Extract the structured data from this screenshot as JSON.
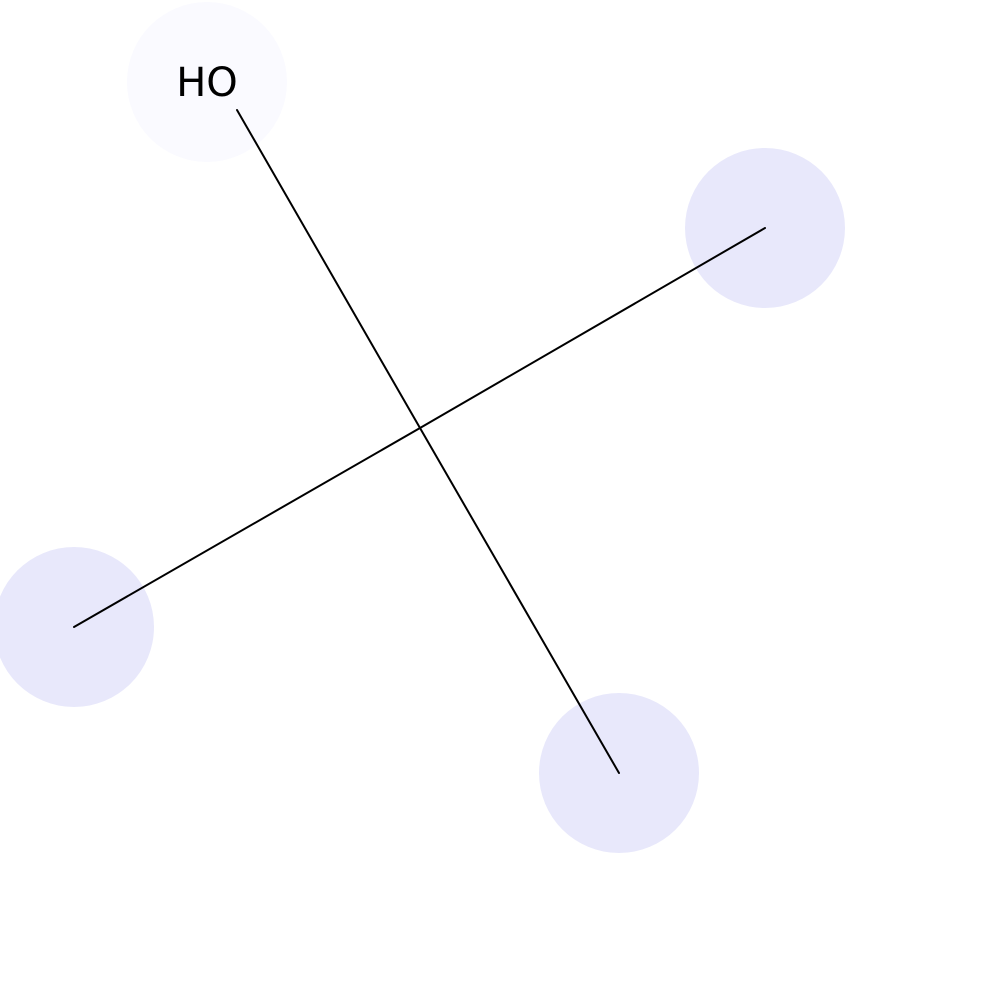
{
  "molecule": {
    "atom_labels": {
      "hydroxyl": "HO"
    },
    "highlight_colors": {
      "hydroxyl": "#fafaff",
      "methyl": "#e8e8fb"
    }
  }
}
